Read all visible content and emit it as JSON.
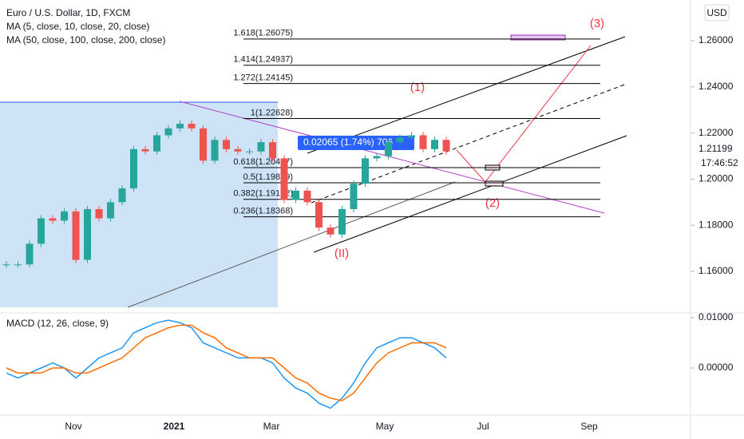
{
  "header": {
    "symbol": "Euro / U.S. Dollar, 1D, FXCM",
    "ma_fast": "MA (5, close, 10, close, 20, close)",
    "ma_slow": "MA (50, close, 100, close, 200, close)",
    "currency": "USD"
  },
  "price_axis": {
    "ticks": [
      {
        "value": 1.26,
        "label": "1.26000"
      },
      {
        "value": 1.24,
        "label": "1.24000"
      },
      {
        "value": 1.22,
        "label": "1.22000"
      },
      {
        "value": 1.2,
        "label": "1.20000"
      },
      {
        "value": 1.18,
        "label": "1.18000"
      },
      {
        "value": 1.16,
        "label": "1.16000"
      }
    ],
    "last_price": {
      "value": 1.21199,
      "label": "1.21199"
    },
    "countdown": "17:46:52"
  },
  "price": {
    "closes": [
      1.163,
      1.163,
      1.172,
      1.183,
      1.182,
      1.186,
      1.165,
      1.187,
      1.183,
      1.19,
      1.196,
      1.213,
      1.212,
      1.219,
      1.222,
      1.224,
      1.222,
      1.208,
      1.217,
      1.213,
      1.212,
      1.212,
      1.216,
      1.209,
      1.191,
      1.195,
      1.19,
      1.179,
      1.176,
      1.187,
      1.198,
      1.209,
      1.21,
      1.216,
      1.218,
      1.219,
      1.213,
      1.217,
      1.212
    ]
  },
  "fib": [
    {
      "label": "1.618(1.26075)",
      "price": 1.26075
    },
    {
      "label": "1.414(1.24937)",
      "price": 1.24937
    },
    {
      "label": "1.272(1.24145)",
      "price": 1.24145
    },
    {
      "label": "1(1.22628)",
      "price": 1.22628
    },
    {
      "label": "0.618(1.20497)",
      "price": 1.20497
    },
    {
      "label": "0.5(1.19839)",
      "price": 1.19839
    },
    {
      "label": "0.382(1.19122)",
      "price": 1.19122
    },
    {
      "label": "0.236(1.18368)",
      "price": 1.18368
    }
  ],
  "waves": {
    "w3": "(3)",
    "w1": "(1)",
    "w2": "(2)",
    "wII": "(II)"
  },
  "measure": "0.02065 (1.74%) 706",
  "macd": {
    "title": "MACD (12, 26, close, 9)",
    "ticks": [
      {
        "value": 0.01,
        "label": "0.01000"
      },
      {
        "value": 0,
        "label": "0.00000"
      }
    ],
    "macd": [
      -0.001,
      -0.002,
      -0.001,
      0,
      0.001,
      0,
      -0.002,
      0,
      0.002,
      0.003,
      0.004,
      0.007,
      0.008,
      0.009,
      0.0095,
      0.009,
      0.008,
      0.005,
      0.004,
      0.003,
      0.002,
      0.002,
      0.002,
      0.001,
      -0.002,
      -0.004,
      -0.005,
      -0.007,
      -0.008,
      -0.006,
      -0.003,
      0.001,
      0.004,
      0.005,
      0.006,
      0.006,
      0.005,
      0.004,
      0.002
    ],
    "signal": [
      0,
      -0.001,
      -0.001,
      -0.001,
      0,
      0,
      -0.001,
      -0.001,
      0,
      0.001,
      0.002,
      0.004,
      0.006,
      0.007,
      0.008,
      0.0085,
      0.0085,
      0.007,
      0.006,
      0.004,
      0.003,
      0.002,
      0.002,
      0.002,
      0,
      -0.002,
      -0.003,
      -0.005,
      -0.006,
      -0.0065,
      -0.005,
      -0.002,
      0.001,
      0.003,
      0.004,
      0.005,
      0.005,
      0.005,
      0.004
    ]
  },
  "time_axis": [
    "Nov",
    "2021",
    "Mar",
    "May",
    "Jul",
    "Sep"
  ]
}
